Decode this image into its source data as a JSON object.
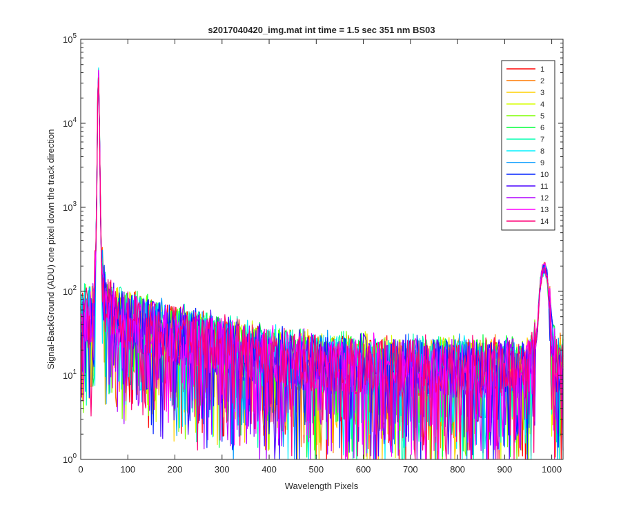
{
  "chart_data": {
    "type": "line",
    "title": "s2017040420_img.mat int time = 1.5 sec  351 nm BS03",
    "xlabel": "Wavelength Pixels",
    "ylabel": "Signal-BackGround (ADU) one pixel down the track direction",
    "xlim": [
      0,
      1024
    ],
    "ylim": [
      1,
      100000
    ],
    "yscale": "log",
    "grid": false,
    "legend_position": "top-right",
    "x_ticks": [
      0,
      100,
      200,
      300,
      400,
      500,
      600,
      700,
      800,
      900,
      1000
    ],
    "y_ticks": [
      {
        "value": 1,
        "base": "10",
        "exp": "0"
      },
      {
        "value": 10,
        "base": "10",
        "exp": "1"
      },
      {
        "value": 100,
        "base": "10",
        "exp": "2"
      },
      {
        "value": 1000,
        "base": "10",
        "exp": "3"
      },
      {
        "value": 10000,
        "base": "10",
        "exp": "4"
      },
      {
        "value": 100000,
        "base": "10",
        "exp": "5"
      }
    ],
    "series": [
      {
        "name": "1",
        "color": "#ff0000"
      },
      {
        "name": "2",
        "color": "#ff7a00"
      },
      {
        "name": "3",
        "color": "#ffd000"
      },
      {
        "name": "4",
        "color": "#d6ff00"
      },
      {
        "name": "5",
        "color": "#7fff00"
      },
      {
        "name": "6",
        "color": "#00ff3c"
      },
      {
        "name": "7",
        "color": "#00ffb0"
      },
      {
        "name": "8",
        "color": "#00f0ff"
      },
      {
        "name": "9",
        "color": "#0098ff"
      },
      {
        "name": "10",
        "color": "#0022ff"
      },
      {
        "name": "11",
        "color": "#4800ff"
      },
      {
        "name": "12",
        "color": "#b000ff"
      },
      {
        "name": "13",
        "color": "#ff00ff"
      },
      {
        "name": "14",
        "color": "#ff0077"
      }
    ],
    "profile": {
      "x": [
        0,
        10,
        20,
        28,
        33,
        36,
        38,
        40,
        43,
        48,
        55,
        70,
        100,
        150,
        200,
        250,
        300,
        350,
        400,
        450,
        500,
        550,
        600,
        650,
        700,
        750,
        800,
        850,
        900,
        940,
        960,
        970,
        975,
        980,
        985,
        990,
        1000,
        1010,
        1024
      ],
      "y": [
        40,
        50,
        45,
        60,
        400,
        20000,
        40000,
        8000,
        300,
        90,
        60,
        50,
        45,
        35,
        30,
        25,
        22,
        18,
        16,
        15,
        14,
        13,
        13,
        12,
        12,
        12,
        12,
        12,
        12,
        11,
        13,
        40,
        120,
        180,
        200,
        160,
        25,
        14,
        12
      ]
    }
  }
}
